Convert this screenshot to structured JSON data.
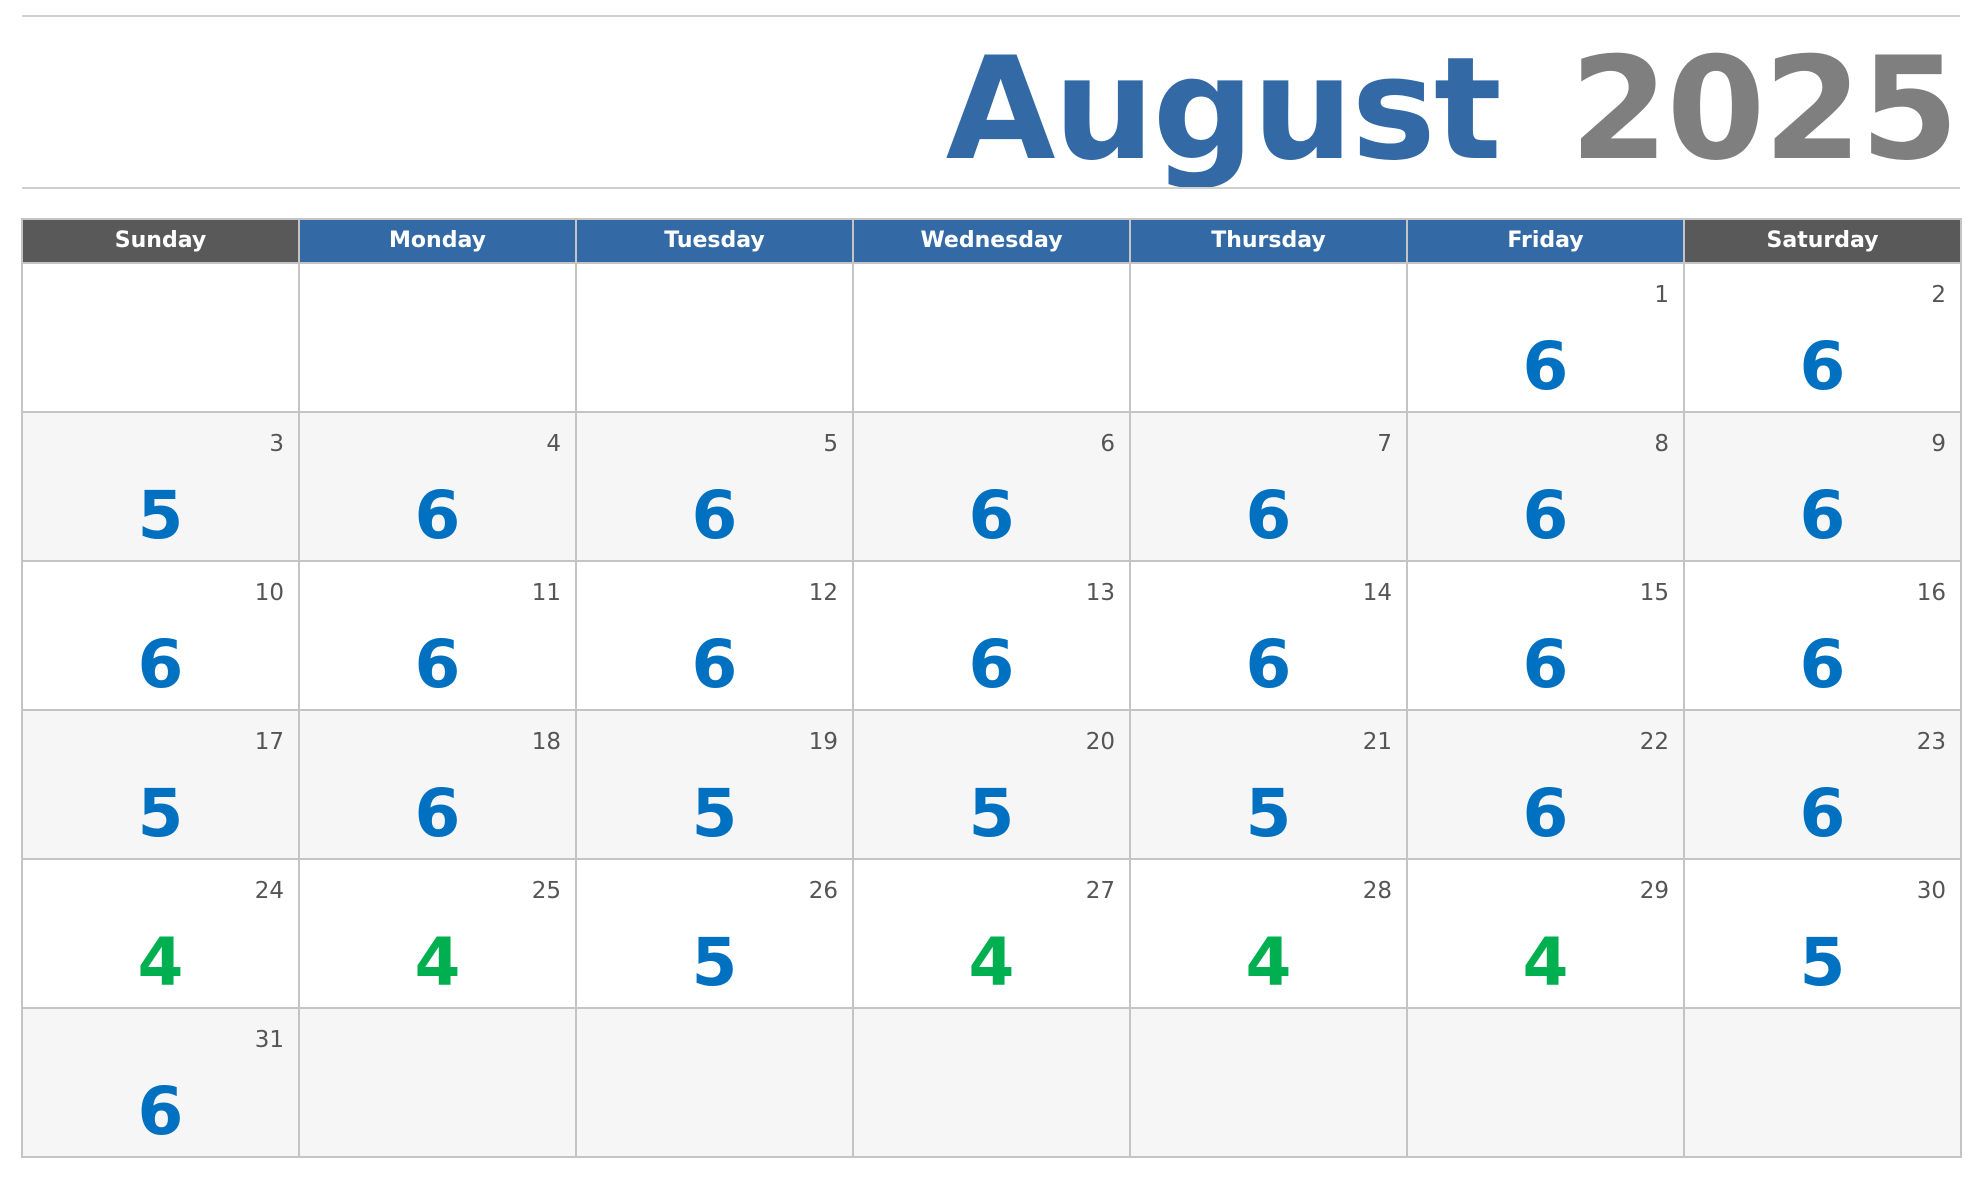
{
  "title": {
    "month": "August",
    "year": "2025"
  },
  "colors": {
    "header_blue": "#336aa6",
    "header_gray": "#595959",
    "value_blue": "#0070c0",
    "value_green": "#00b050",
    "year_gray": "#7f7f7f"
  },
  "weekdays": [
    "Sunday",
    "Monday",
    "Tuesday",
    "Wednesday",
    "Thursday",
    "Friday",
    "Saturday"
  ],
  "weeks": [
    [
      null,
      null,
      null,
      null,
      null,
      {
        "day": "1",
        "value": "6"
      },
      {
        "day": "2",
        "value": "6"
      }
    ],
    [
      {
        "day": "3",
        "value": "5"
      },
      {
        "day": "4",
        "value": "6"
      },
      {
        "day": "5",
        "value": "6"
      },
      {
        "day": "6",
        "value": "6"
      },
      {
        "day": "7",
        "value": "6"
      },
      {
        "day": "8",
        "value": "6"
      },
      {
        "day": "9",
        "value": "6"
      }
    ],
    [
      {
        "day": "10",
        "value": "6"
      },
      {
        "day": "11",
        "value": "6"
      },
      {
        "day": "12",
        "value": "6"
      },
      {
        "day": "13",
        "value": "6"
      },
      {
        "day": "14",
        "value": "6"
      },
      {
        "day": "15",
        "value": "6"
      },
      {
        "day": "16",
        "value": "6"
      }
    ],
    [
      {
        "day": "17",
        "value": "5"
      },
      {
        "day": "18",
        "value": "6"
      },
      {
        "day": "19",
        "value": "5"
      },
      {
        "day": "20",
        "value": "5"
      },
      {
        "day": "21",
        "value": "5"
      },
      {
        "day": "22",
        "value": "6"
      },
      {
        "day": "23",
        "value": "6"
      }
    ],
    [
      {
        "day": "24",
        "value": "4"
      },
      {
        "day": "25",
        "value": "4"
      },
      {
        "day": "26",
        "value": "5"
      },
      {
        "day": "27",
        "value": "4"
      },
      {
        "day": "28",
        "value": "4"
      },
      {
        "day": "29",
        "value": "4"
      },
      {
        "day": "30",
        "value": "5"
      }
    ],
    [
      {
        "day": "31",
        "value": "6"
      },
      null,
      null,
      null,
      null,
      null,
      null
    ]
  ]
}
